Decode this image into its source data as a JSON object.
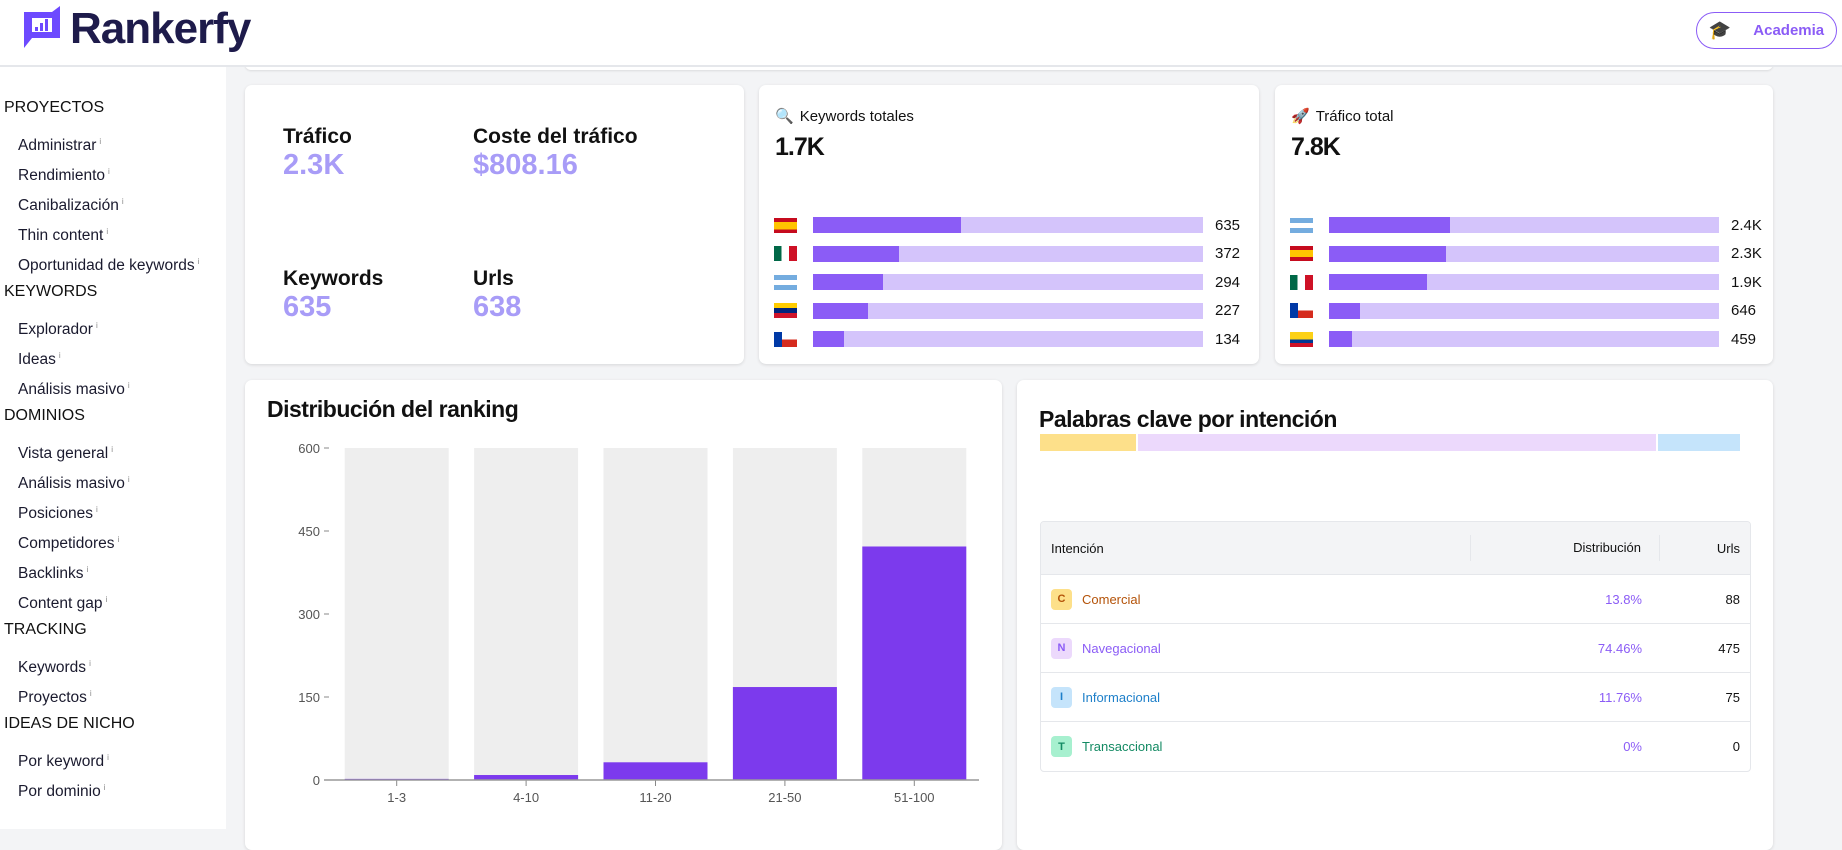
{
  "header": {
    "logo_text": "Rankerfy",
    "academia_label": "Academia"
  },
  "sidebar": {
    "sections": [
      {
        "title": "PROYECTOS",
        "items": [
          "Administrar",
          "Rendimiento",
          "Canibalización",
          "Thin content",
          "Oportunidad de keywords"
        ]
      },
      {
        "title": "KEYWORDS",
        "items": [
          "Explorador",
          "Ideas",
          "Análisis masivo"
        ]
      },
      {
        "title": "DOMINIOS",
        "items": [
          "Vista general",
          "Análisis masivo",
          "Posiciones",
          "Competidores",
          "Backlinks",
          "Content gap"
        ]
      },
      {
        "title": "TRACKING",
        "items": [
          "Keywords",
          "Proyectos"
        ]
      },
      {
        "title": "IDEAS DE NICHO",
        "items": [
          "Por keyword",
          "Por dominio"
        ]
      }
    ],
    "info_marker": "i"
  },
  "summary": {
    "trafico_label": "Tráfico",
    "trafico_value": "2.3K",
    "coste_label": "Coste del tráfico",
    "coste_value": "$808.16",
    "keywords_label": "Keywords",
    "keywords_value": "635",
    "urls_label": "Urls",
    "urls_value": "638"
  },
  "keywords_totales": {
    "title": "Keywords totales",
    "icon": "magnifier-icon",
    "value": "1.7K",
    "rows": [
      {
        "country": "es",
        "value": "635",
        "fill_percent": 38
      },
      {
        "country": "mx",
        "value": "372",
        "fill_percent": 22
      },
      {
        "country": "ar",
        "value": "294",
        "fill_percent": 18
      },
      {
        "country": "ve",
        "value": "227",
        "fill_percent": 14
      },
      {
        "country": "cl",
        "value": "134",
        "fill_percent": 8
      }
    ]
  },
  "trafico_total": {
    "title": "Tráfico total",
    "icon": "rocket-icon",
    "value": "7.8K",
    "rows": [
      {
        "country": "ar",
        "value": "2.4K",
        "fill_percent": 31
      },
      {
        "country": "es",
        "value": "2.3K",
        "fill_percent": 30
      },
      {
        "country": "mx",
        "value": "1.9K",
        "fill_percent": 25
      },
      {
        "country": "cl",
        "value": "646",
        "fill_percent": 8
      },
      {
        "country": "co",
        "value": "459",
        "fill_percent": 6
      }
    ]
  },
  "chart_data": {
    "type": "bar",
    "title": "Distribución del ranking",
    "categories": [
      "1-3",
      "4-10",
      "11-20",
      "21-50",
      "51-100"
    ],
    "values": [
      2,
      9,
      32,
      168,
      422
    ],
    "ylim": [
      0,
      600
    ],
    "yticks": [
      0,
      150,
      300,
      450,
      600
    ],
    "bar_color": "#7c3aed",
    "background_bar_color": "#eeeeee",
    "grid": false
  },
  "intencion": {
    "title": "Palabras clave por intención",
    "columns": [
      "Intención",
      "Distribución",
      "Urls"
    ],
    "rows": [
      {
        "badge": "C",
        "name": "Comercial",
        "dist": "13.8%",
        "pct": 13.8,
        "urls": "88",
        "color": "#b45309",
        "bg": "#fde08a"
      },
      {
        "badge": "N",
        "name": "Navegacional",
        "dist": "74.46%",
        "pct": 74.46,
        "urls": "475",
        "color": "#8b5cf6",
        "bg": "#ecd9fc"
      },
      {
        "badge": "I",
        "name": "Informacional",
        "dist": "11.76%",
        "pct": 11.76,
        "urls": "75",
        "color": "#1d7fc9",
        "bg": "#c5e4fb"
      },
      {
        "badge": "T",
        "name": "Transaccional",
        "dist": "0%",
        "pct": 0,
        "urls": "0",
        "color": "#138a63",
        "bg": "#a7f0cf"
      }
    ],
    "dist_color": "#8b5cf6"
  }
}
